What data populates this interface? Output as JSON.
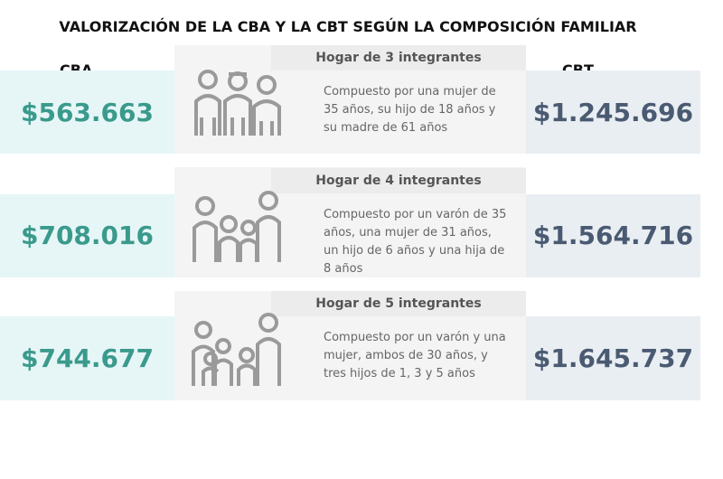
{
  "title": "VALORIZACIÓN DE LA CBA Y LA CBT SEGÚN LA COMPOSICIÓN FAMILIAR",
  "headers": {
    "cba": "CBA",
    "cbt": "CBT"
  },
  "rows": [
    {
      "cba": "$563.663",
      "title": "Hogar de 3 integrantes",
      "description": "Compuesto por una mujer de 35 años, su hijo de 18 años y su madre de 61 años",
      "cbt": "$1.245.696"
    },
    {
      "cba": "$708.016",
      "title": "Hogar de 4 integrantes",
      "description": "Compuesto por un varón de 35 años, una mujer de 31 años, un hijo de 6 años y una hija de 8 años",
      "cbt": "$1.564.716"
    },
    {
      "cba": "$744.677",
      "title": "Hogar de 5 integrantes",
      "description": "Compuesto por un varón y una mujer, ambos de 30 años, y tres hijos de 1, 3 y 5 años",
      "cbt": "$1.645.737"
    }
  ]
}
